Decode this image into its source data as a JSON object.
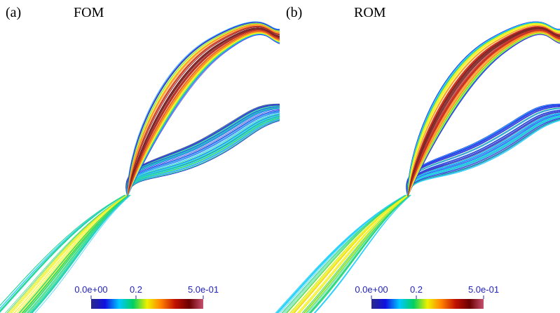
{
  "panels": [
    {
      "label": "(a)",
      "title": "FOM",
      "colorbar": {
        "range": [
          0,
          0.5
        ],
        "ticks": [
          {
            "value": 0,
            "label": "0.0e+00"
          },
          0.2,
          {
            "value": 0.5,
            "label": "5.0e-01"
          }
        ],
        "colors": [
          "#2a2a8a",
          "#1010e0",
          "#00c8ff",
          "#00d060",
          "#f0f000",
          "#ff8000",
          "#c01000",
          "#6a0000",
          "#c85070"
        ]
      }
    },
    {
      "label": "(b)",
      "title": "ROM",
      "colorbar": {
        "range": [
          0,
          0.5
        ],
        "ticks": [
          {
            "value": 0,
            "label": "0.0e+00"
          },
          0.2,
          {
            "value": 0.5,
            "label": "5.0e-01"
          }
        ],
        "colors": [
          "#2a2a8a",
          "#1010e0",
          "#00c8ff",
          "#00d060",
          "#f0f000",
          "#ff8000",
          "#c01000",
          "#6a0000",
          "#c85070"
        ]
      }
    }
  ]
}
